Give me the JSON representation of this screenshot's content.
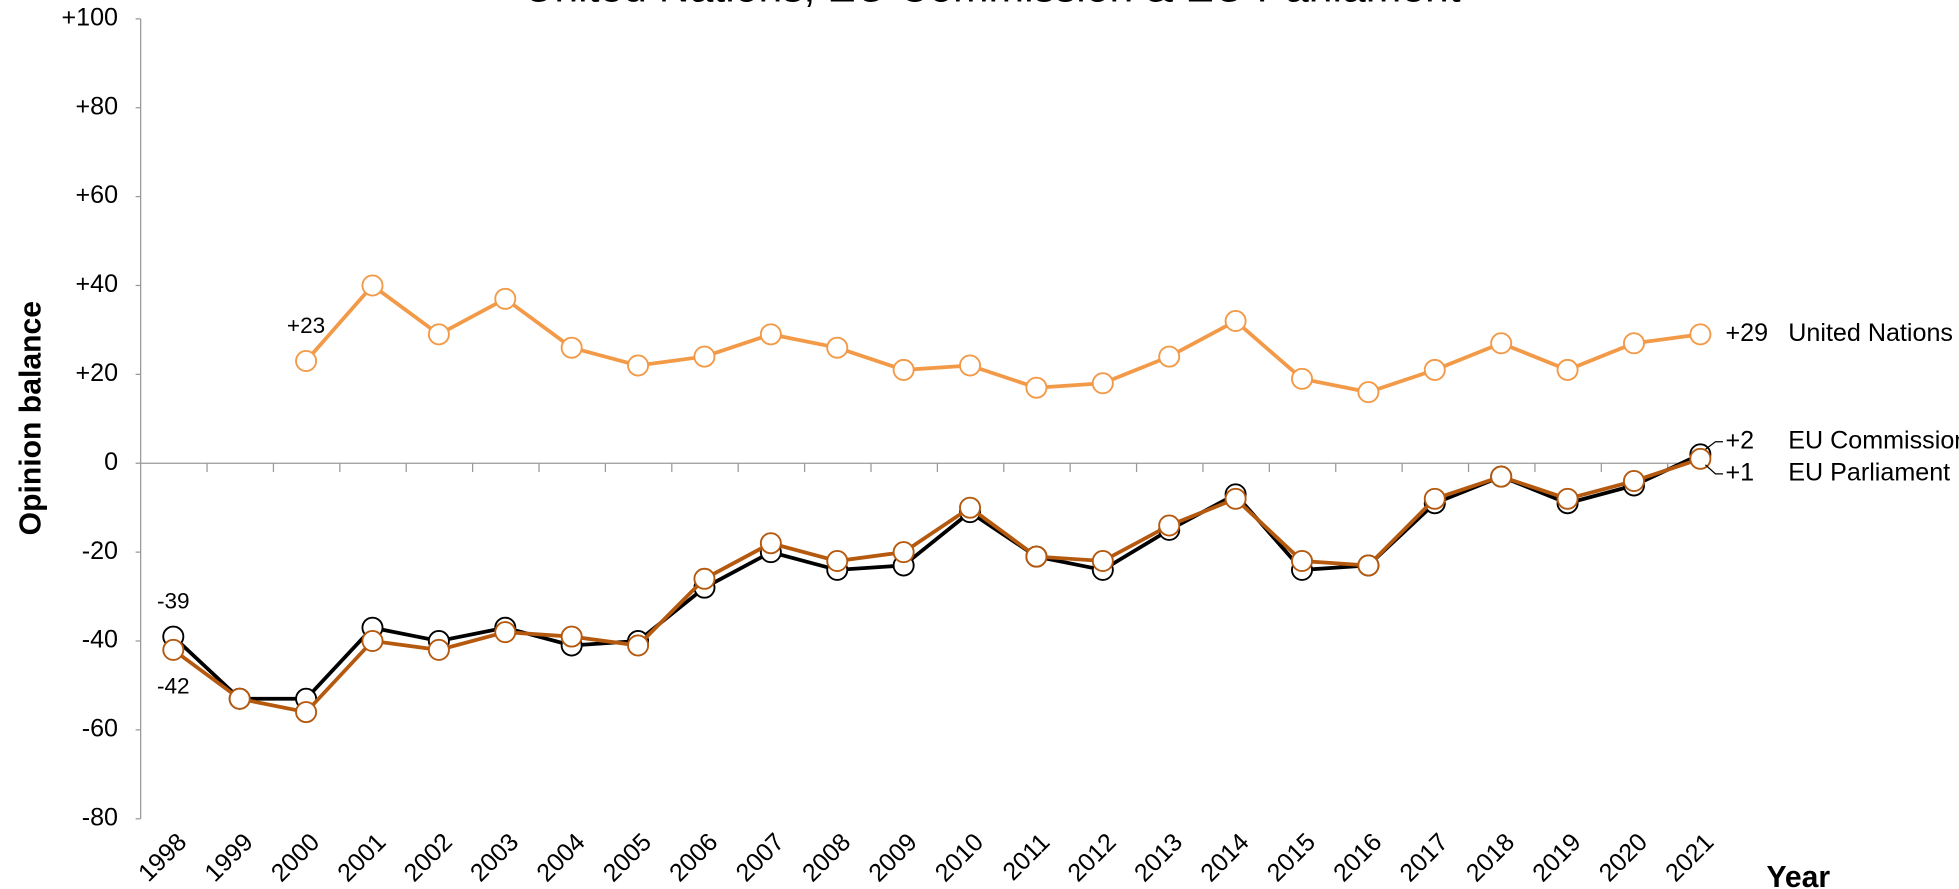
{
  "chart_data": {
    "type": "line",
    "title": "United Nations, EU Commission & EU Parliament",
    "x_label": "Year",
    "y_label": "Opinion balance",
    "categories": [
      "1998",
      "1999",
      "2000",
      "2001",
      "2002",
      "2003",
      "2004",
      "2005",
      "2006",
      "2007",
      "2008",
      "2009",
      "2010",
      "2011",
      "2012",
      "2013",
      "2014",
      "2015",
      "2016",
      "2017",
      "2018",
      "2019",
      "2020",
      "2021"
    ],
    "ylim": [
      -80,
      100
    ],
    "yticks": [
      {
        "value": 100,
        "label": "+100"
      },
      {
        "value": 80,
        "label": "+80"
      },
      {
        "value": 60,
        "label": "+60"
      },
      {
        "value": 40,
        "label": "+40"
      },
      {
        "value": 20,
        "label": "+20"
      },
      0,
      -20,
      -40,
      -60,
      -80
    ],
    "series": [
      {
        "name": "United Nations",
        "color": "#f39a48",
        "values": [
          null,
          null,
          23,
          40,
          29,
          37,
          26,
          22,
          24,
          29,
          26,
          21,
          22,
          17,
          18,
          24,
          32,
          19,
          16,
          21,
          27,
          21,
          27,
          29
        ],
        "value_labels": [
          null,
          null,
          "+23",
          null,
          null,
          null,
          null,
          null,
          null,
          null,
          null,
          null,
          null,
          null,
          null,
          null,
          null,
          null,
          null,
          null,
          null,
          null,
          null,
          "+29"
        ]
      },
      {
        "name": "EU Commission",
        "color": "#000000",
        "values": [
          -39,
          -53,
          -53,
          -37,
          -40,
          -37,
          -41,
          -40,
          -28,
          -20,
          -24,
          -23,
          -11,
          -21,
          -24,
          -15,
          -7,
          -24,
          -23,
          -9,
          -3,
          -9,
          -5,
          2
        ],
        "value_labels": [
          "-39",
          null,
          null,
          null,
          null,
          null,
          null,
          null,
          null,
          null,
          null,
          null,
          null,
          null,
          null,
          null,
          null,
          null,
          null,
          null,
          null,
          null,
          null,
          "+2"
        ]
      },
      {
        "name": "EU Parliament",
        "color": "#b5590f",
        "values": [
          -42,
          -53,
          -56,
          -40,
          -42,
          -38,
          -39,
          -41,
          -26,
          -18,
          -22,
          -20,
          -10,
          -21,
          -22,
          -14,
          -8,
          -22,
          -23,
          -8,
          -3,
          -8,
          -4,
          1
        ],
        "value_labels": [
          "-42",
          null,
          null,
          null,
          null,
          null,
          null,
          null,
          null,
          null,
          null,
          null,
          null,
          null,
          null,
          null,
          null,
          null,
          null,
          null,
          null,
          null,
          null,
          "+1"
        ]
      }
    ]
  }
}
